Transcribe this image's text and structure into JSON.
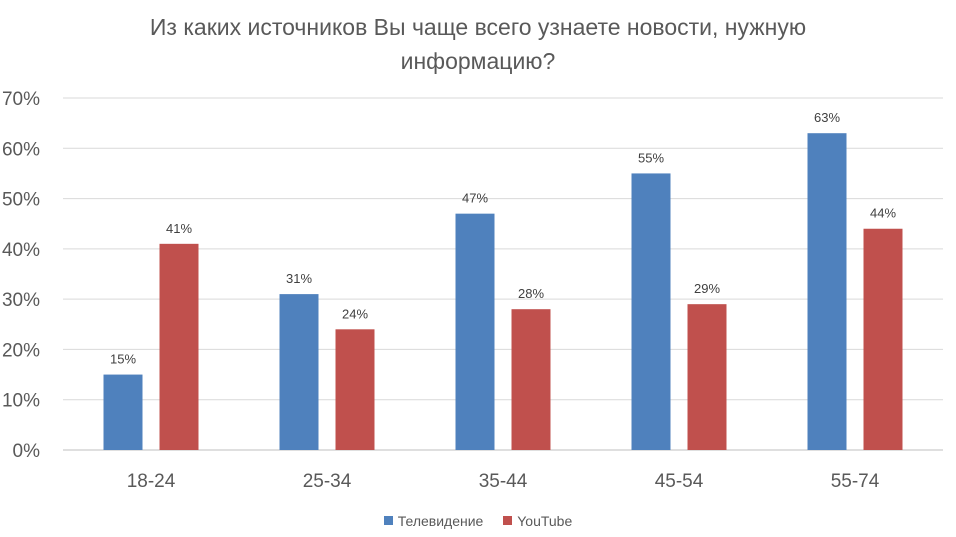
{
  "title_lines": [
    "Из каких источников Вы чаще всего узнаете новости, нужную",
    "информацию?"
  ],
  "legend": [
    {
      "label": "Телевидение",
      "color": "#4f81bd"
    },
    {
      "label": "YouTube",
      "color": "#c0504d"
    }
  ],
  "chart_data": {
    "type": "bar",
    "categories": [
      "18-24",
      "25-34",
      "35-44",
      "45-54",
      "55-74"
    ],
    "series": [
      {
        "name": "Телевидение",
        "color": "#4f81bd",
        "values": [
          15,
          31,
          47,
          55,
          63
        ],
        "labels": [
          "15%",
          "31%",
          "47%",
          "55%",
          "63%"
        ]
      },
      {
        "name": "YouTube",
        "color": "#c0504d",
        "values": [
          41,
          24,
          28,
          29,
          44
        ],
        "labels": [
          "41%",
          "24%",
          "28%",
          "29%",
          "44%"
        ]
      }
    ],
    "y_ticks": [
      "0%",
      "10%",
      "20%",
      "30%",
      "40%",
      "50%",
      "60%",
      "70%"
    ],
    "ylim": [
      0,
      70
    ],
    "grid": true,
    "legend_position": "bottom"
  }
}
